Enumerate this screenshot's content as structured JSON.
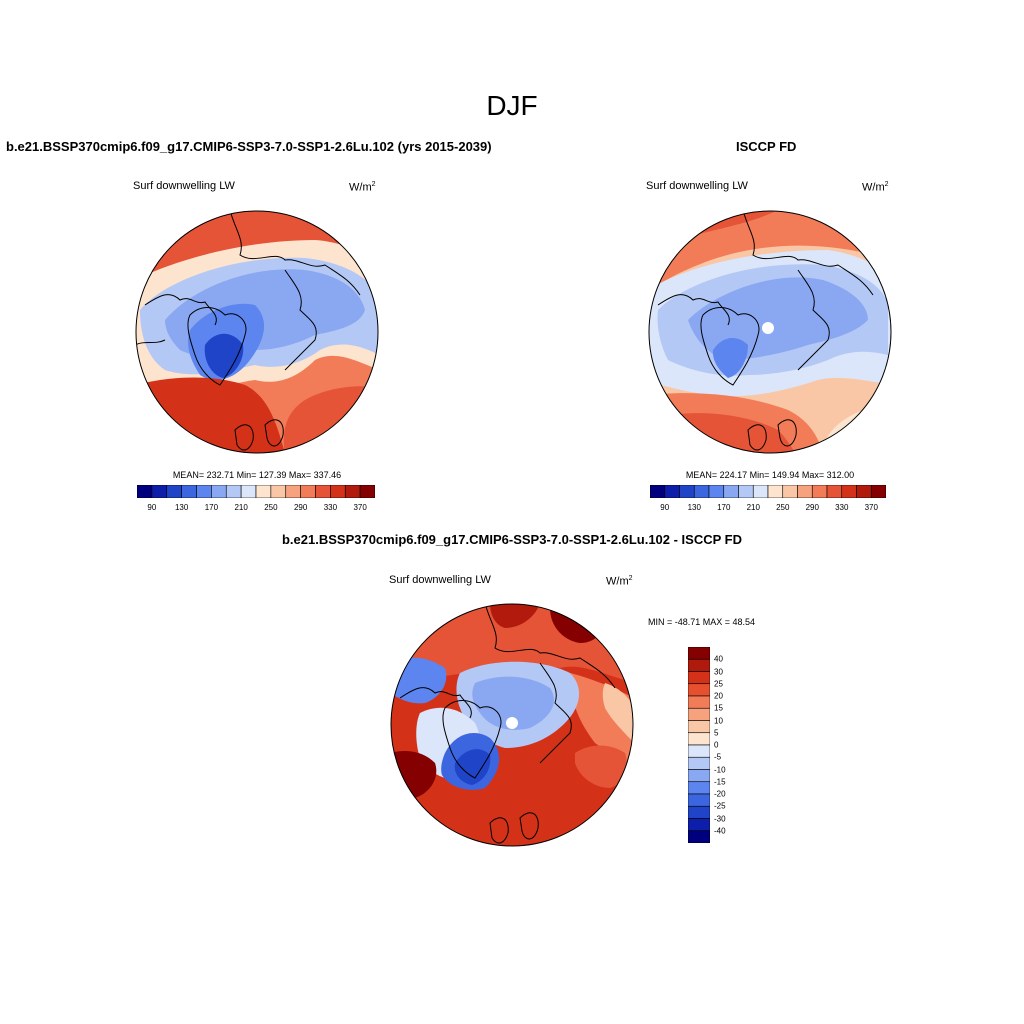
{
  "title": "DJF",
  "panels": [
    {
      "title": "b.e21.BSSP370cmip6.f09_g17.CMIP6-SSP3-7.0-SSP1-2.6Lu.102 (yrs 2015-2039)",
      "variable": "Surf downwelling LW",
      "units_base": "W/m",
      "units_exp": "2",
      "stats": "MEAN= 232.71  Min= 127.39  Max= 337.46"
    },
    {
      "title": "ISCCP FD",
      "variable": "Surf downwelling LW",
      "units_base": "W/m",
      "units_exp": "2",
      "stats": "MEAN= 224.17  Min= 149.94  Max= 312.00"
    },
    {
      "title": "b.e21.BSSP370cmip6.f09_g17.CMIP6-SSP3-7.0-SSP1-2.6Lu.102 - ISCCP FD",
      "variable": "Surf downwelling LW",
      "units_base": "W/m",
      "units_exp": "2",
      "stats": "MIN = -48.71 MAX =  48.54"
    }
  ],
  "colorbar_abs": {
    "colors": [
      "#00007f",
      "#0d1eaa",
      "#1f44c8",
      "#3c66e0",
      "#5d85ef",
      "#8aa8f2",
      "#b4c8f5",
      "#dbe6fa",
      "#fde4cf",
      "#f9c7a6",
      "#f6a27e",
      "#f27c58",
      "#e55436",
      "#d33219",
      "#b11a0c",
      "#850000"
    ],
    "labels": [
      "90",
      "130",
      "170",
      "210",
      "250",
      "290",
      "330",
      "370"
    ]
  },
  "colorbar_diff": {
    "colors": [
      "#850000",
      "#b01a0c",
      "#d33219",
      "#e6502f",
      "#f27c58",
      "#f6a27e",
      "#f9c7a6",
      "#fde4cf",
      "#dbe6fa",
      "#b4c8f5",
      "#8aa8f2",
      "#5d85ef",
      "#3c66e0",
      "#1f44c8",
      "#0d1eaa",
      "#00007f"
    ],
    "labels": [
      "40",
      "30",
      "25",
      "20",
      "15",
      "10",
      "5",
      "0",
      "-5",
      "-10",
      "-15",
      "-20",
      "-25",
      "-30",
      "-40"
    ]
  },
  "map_colors": {
    "deep_red": "#850000",
    "red": "#d33219",
    "orange": "#f27c58",
    "peach": "#f9c7a6",
    "cream": "#fde4cf",
    "pale_blue": "#dbe6fa",
    "light_blue": "#b4c8f5",
    "blue": "#8aa8f2",
    "mid_blue": "#5d85ef",
    "deep_blue": "#1f44c8",
    "navy": "#00007f"
  }
}
